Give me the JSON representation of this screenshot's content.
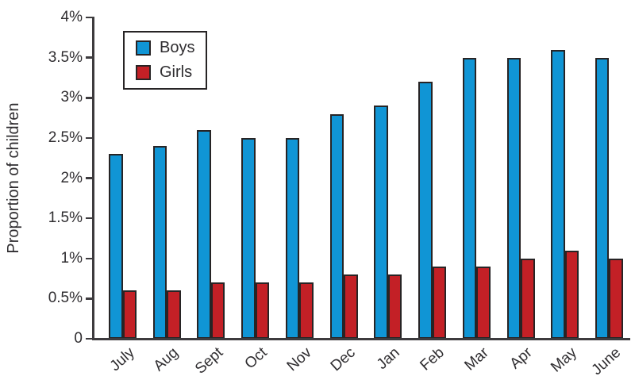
{
  "chart_data": {
    "type": "bar",
    "categories": [
      "July",
      "Aug",
      "Sept",
      "Oct",
      "Nov",
      "Dec",
      "Jan",
      "Feb",
      "Mar",
      "Apr",
      "May",
      "June"
    ],
    "series": [
      {
        "name": "Boys",
        "color": "#1095d5",
        "values": [
          2.3,
          2.4,
          2.6,
          2.5,
          2.5,
          2.8,
          2.9,
          3.2,
          3.5,
          3.5,
          3.6,
          3.5
        ]
      },
      {
        "name": "Girls",
        "color": "#c32026",
        "values": [
          0.6,
          0.6,
          0.7,
          0.7,
          0.7,
          0.8,
          0.8,
          0.9,
          0.9,
          1.0,
          1.1,
          1.0
        ]
      }
    ],
    "ylabel": "Proportion of children",
    "ylim": [
      0,
      4
    ],
    "ytick_values": [
      0,
      0.5,
      1,
      1.5,
      2,
      2.5,
      3,
      3.5,
      4
    ],
    "ytick_labels": [
      "0",
      "0.5%",
      "1%",
      "1.5%",
      "2%",
      "2.5%",
      "3%",
      "3.5%",
      "4%"
    ],
    "grid": false,
    "legend_position": "upper-left-inside",
    "axis_color": "#3d3b3e",
    "bar_outline_color": "#272425"
  }
}
